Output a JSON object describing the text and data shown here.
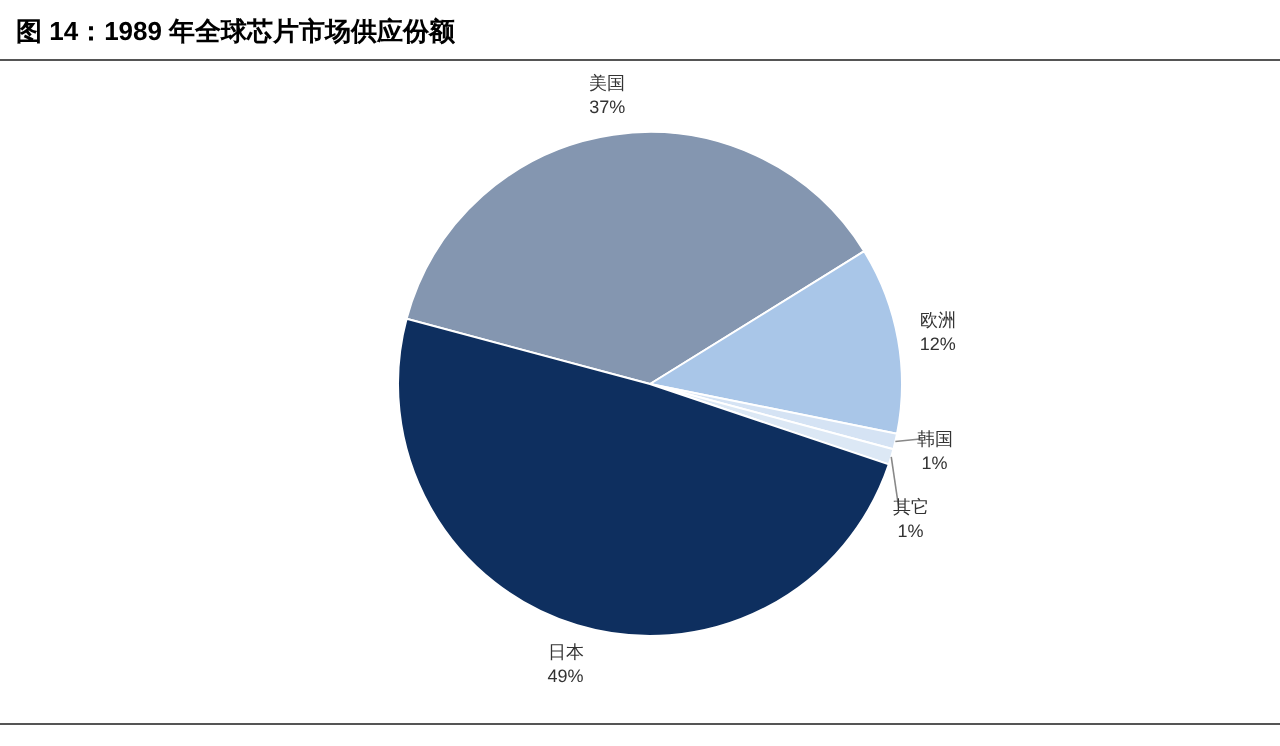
{
  "chart_data": {
    "type": "pie",
    "title": "图 14：1989 年全球芯片市场供应份额",
    "categories": [
      "美国",
      "欧洲",
      "韩国",
      "其它",
      "日本"
    ],
    "values": [
      37,
      12,
      1,
      1,
      49
    ],
    "colors": [
      "#8496b0",
      "#a9c6e8",
      "#d5e3f4",
      "#dce8f5",
      "#0e2f5f"
    ],
    "value_labels": [
      "37%",
      "12%",
      "1%",
      "1%",
      "49%"
    ]
  }
}
